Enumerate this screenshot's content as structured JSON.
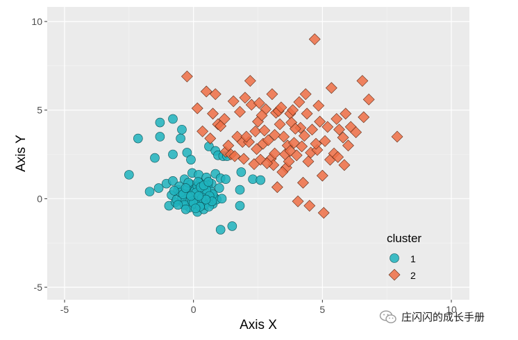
{
  "chart_data": {
    "type": "scatter",
    "title": "",
    "xlabel": "Axis X",
    "ylabel": "Axis Y",
    "xlim": [
      -5,
      10
    ],
    "ylim": [
      -5,
      10
    ],
    "xticks": [
      -5,
      0,
      5,
      10
    ],
    "yticks": [
      -5,
      0,
      5,
      10
    ],
    "x_tick_labels": [
      "-5",
      "0",
      "5",
      "10"
    ],
    "y_tick_labels": [
      "-5",
      "0",
      "5",
      "10"
    ],
    "grid": true,
    "background": "#ebebeb",
    "legend": {
      "title": "cluster",
      "position": "bottom-right-inside"
    },
    "series": [
      {
        "name": "1",
        "marker": "circle",
        "color": "#1fb3bd",
        "points": [
          [
            -2.5,
            1.35
          ],
          [
            -2.15,
            3.4
          ],
          [
            -1.7,
            0.4
          ],
          [
            -1.5,
            2.3
          ],
          [
            -1.35,
            0.6
          ],
          [
            -1.3,
            4.3
          ],
          [
            -1.3,
            3.5
          ],
          [
            -1.05,
            0.85
          ],
          [
            -0.95,
            -0.4
          ],
          [
            -0.85,
            0.2
          ],
          [
            -0.8,
            1.0
          ],
          [
            -0.8,
            2.5
          ],
          [
            -0.8,
            4.5
          ],
          [
            -0.7,
            -0.2
          ],
          [
            -0.6,
            0.5
          ],
          [
            -0.5,
            3.4
          ],
          [
            -0.45,
            3.9
          ],
          [
            -0.4,
            -0.2
          ],
          [
            -0.35,
            1.1
          ],
          [
            -0.3,
            0.3
          ],
          [
            -0.25,
            2.6
          ],
          [
            -0.2,
            0.0
          ],
          [
            -0.15,
            -0.5
          ],
          [
            -0.1,
            0.8
          ],
          [
            -0.1,
            2.2
          ],
          [
            -0.05,
            1.45
          ],
          [
            0.0,
            0.5
          ],
          [
            0.05,
            -0.3
          ],
          [
            0.1,
            0.1
          ],
          [
            0.15,
            -0.75
          ],
          [
            0.2,
            1.35
          ],
          [
            0.25,
            0.9
          ],
          [
            0.3,
            0.2
          ],
          [
            0.35,
            -0.1
          ],
          [
            0.4,
            -0.6
          ],
          [
            0.45,
            0.6
          ],
          [
            0.5,
            1.2
          ],
          [
            0.5,
            -0.2
          ],
          [
            0.55,
            0.3
          ],
          [
            0.6,
            2.95
          ],
          [
            0.65,
            0.0
          ],
          [
            0.7,
            0.85
          ],
          [
            0.75,
            -0.3
          ],
          [
            0.8,
            0.1
          ],
          [
            0.85,
            1.4
          ],
          [
            0.85,
            2.7
          ],
          [
            0.9,
            -0.05
          ],
          [
            0.95,
            2.45
          ],
          [
            1.0,
            0.6
          ],
          [
            1.05,
            1.15
          ],
          [
            1.05,
            -1.75
          ],
          [
            1.1,
            0.0
          ],
          [
            1.15,
            2.4
          ],
          [
            1.25,
            1.1
          ],
          [
            1.3,
            2.4
          ],
          [
            1.5,
            -1.55
          ],
          [
            1.8,
            0.5
          ],
          [
            1.8,
            -0.4
          ],
          [
            1.85,
            1.5
          ],
          [
            2.3,
            1.1
          ],
          [
            2.6,
            1.05
          ],
          [
            -0.55,
            0.7
          ],
          [
            -0.45,
            0.05
          ],
          [
            -0.35,
            -0.35
          ],
          [
            -0.25,
            0.55
          ],
          [
            -0.15,
            0.25
          ],
          [
            -0.05,
            -0.15
          ],
          [
            0.05,
            0.45
          ],
          [
            0.15,
            0.7
          ],
          [
            0.22,
            -0.2
          ],
          [
            0.3,
            0.55
          ],
          [
            0.38,
            0.2
          ],
          [
            0.42,
            -0.35
          ],
          [
            0.55,
            0.75
          ],
          [
            0.6,
            -0.45
          ],
          [
            0.68,
            0.4
          ],
          [
            0.75,
            0.25
          ],
          [
            -0.65,
            -0.05
          ],
          [
            -0.5,
            0.35
          ],
          [
            -0.3,
            -0.6
          ],
          [
            -0.2,
            0.9
          ],
          [
            0.0,
            -0.25
          ],
          [
            0.1,
            0.35
          ],
          [
            0.18,
            0.95
          ],
          [
            0.25,
            -0.45
          ],
          [
            0.33,
            0.05
          ],
          [
            0.45,
            0.35
          ],
          [
            0.5,
            0.5
          ],
          [
            0.62,
            0.15
          ],
          [
            0.72,
            -0.15
          ],
          [
            -0.75,
            0.45
          ],
          [
            -0.6,
            -0.35
          ],
          [
            -0.4,
            0.25
          ],
          [
            0.08,
            -0.55
          ],
          [
            0.28,
            0.65
          ],
          [
            0.48,
            -0.05
          ],
          [
            -0.1,
            0.15
          ],
          [
            0.2,
            0.15
          ],
          [
            0.4,
            0.75
          ],
          [
            -0.3,
            0.6
          ],
          [
            0.58,
            0.95
          ]
        ]
      },
      {
        "name": "2",
        "marker": "diamond",
        "color": "#ee6e45",
        "points": [
          [
            -0.25,
            6.9
          ],
          [
            0.15,
            5.1
          ],
          [
            0.35,
            3.8
          ],
          [
            0.5,
            6.05
          ],
          [
            0.65,
            3.4
          ],
          [
            0.75,
            4.8
          ],
          [
            0.85,
            5.9
          ],
          [
            0.95,
            4.2
          ],
          [
            1.05,
            4.1
          ],
          [
            1.2,
            4.5
          ],
          [
            1.25,
            2.65
          ],
          [
            1.45,
            2.5
          ],
          [
            1.55,
            5.5
          ],
          [
            1.7,
            3.5
          ],
          [
            1.8,
            4.9
          ],
          [
            1.9,
            3.2
          ],
          [
            1.95,
            2.25
          ],
          [
            2.0,
            5.7
          ],
          [
            2.2,
            6.65
          ],
          [
            2.25,
            5.3
          ],
          [
            2.35,
            1.95
          ],
          [
            2.4,
            3.8
          ],
          [
            2.5,
            4.35
          ],
          [
            2.55,
            5.4
          ],
          [
            2.6,
            2.2
          ],
          [
            2.7,
            3.1
          ],
          [
            2.75,
            3.85
          ],
          [
            2.8,
            5.05
          ],
          [
            2.9,
            3.3
          ],
          [
            3.0,
            2.25
          ],
          [
            3.05,
            5.9
          ],
          [
            3.1,
            1.9
          ],
          [
            3.2,
            4.85
          ],
          [
            3.25,
            0.65
          ],
          [
            3.3,
            4.95
          ],
          [
            3.4,
            5.15
          ],
          [
            3.5,
            3.5
          ],
          [
            3.55,
            2.5
          ],
          [
            3.6,
            1.75
          ],
          [
            3.65,
            3.0
          ],
          [
            3.7,
            2.1
          ],
          [
            3.75,
            4.8
          ],
          [
            3.8,
            4.3
          ],
          [
            3.9,
            3.15
          ],
          [
            4.0,
            2.45
          ],
          [
            4.05,
            -0.15
          ],
          [
            4.1,
            5.45
          ],
          [
            4.15,
            4.0
          ],
          [
            4.2,
            2.95
          ],
          [
            4.25,
            0.9
          ],
          [
            4.3,
            3.55
          ],
          [
            4.35,
            5.9
          ],
          [
            4.4,
            4.8
          ],
          [
            4.5,
            -0.4
          ],
          [
            4.55,
            2.6
          ],
          [
            4.6,
            3.9
          ],
          [
            4.7,
            9.0
          ],
          [
            4.8,
            2.75
          ],
          [
            4.85,
            5.25
          ],
          [
            4.9,
            4.35
          ],
          [
            5.0,
            1.3
          ],
          [
            5.05,
            -0.8
          ],
          [
            5.1,
            3.25
          ],
          [
            5.2,
            4.05
          ],
          [
            5.3,
            2.2
          ],
          [
            5.35,
            6.25
          ],
          [
            5.45,
            2.55
          ],
          [
            5.55,
            4.5
          ],
          [
            5.6,
            2.35
          ],
          [
            5.65,
            3.9
          ],
          [
            5.8,
            3.45
          ],
          [
            5.85,
            1.9
          ],
          [
            5.9,
            4.8
          ],
          [
            6.0,
            3.0
          ],
          [
            6.1,
            4.05
          ],
          [
            6.3,
            3.75
          ],
          [
            6.55,
            6.65
          ],
          [
            6.6,
            4.6
          ],
          [
            6.8,
            5.6
          ],
          [
            7.9,
            3.5
          ],
          [
            1.6,
            2.4
          ],
          [
            2.15,
            3.2
          ],
          [
            2.45,
            2.8
          ],
          [
            2.85,
            2.0
          ],
          [
            3.15,
            3.6
          ],
          [
            3.45,
            1.5
          ],
          [
            3.95,
            3.95
          ],
          [
            4.45,
            2.1
          ],
          [
            2.65,
            4.7
          ],
          [
            3.35,
            4.2
          ],
          [
            3.85,
            5.0
          ],
          [
            4.75,
            3.1
          ],
          [
            1.35,
            3.0
          ],
          [
            2.05,
            3.5
          ],
          [
            3.75,
            2.7
          ],
          [
            3.15,
            2.55
          ]
        ]
      }
    ]
  },
  "watermark": {
    "text": "庄闪闪的成长手册",
    "icon": "wechat-icon"
  }
}
